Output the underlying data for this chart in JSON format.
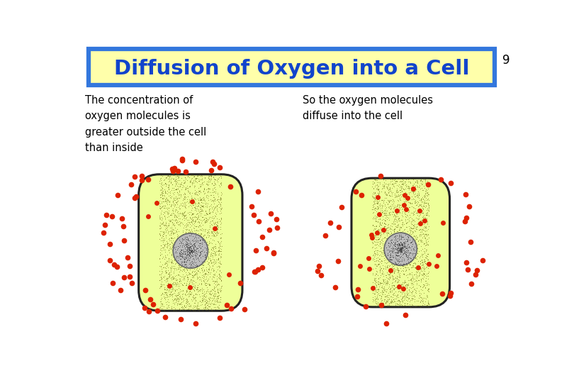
{
  "title": "Diffusion of Oxygen into a Cell",
  "title_bg": "#ffffaa",
  "title_border": "#3377dd",
  "title_color": "#1144cc",
  "page_num": "9",
  "text_left": "The concentration of\noxygen molecules is\ngreater outside the cell\nthan inside",
  "text_right": "So the oxygen molecules\ndiffuse into the cell",
  "bg_color": "#ffffff",
  "cell_fill": "#eeff99",
  "cell_border": "#222222",
  "nucleus_fill": "#bbbbbb",
  "nucleus_border": "#666666",
  "dot_color": "#dd2200",
  "stipple_color": "#333300"
}
